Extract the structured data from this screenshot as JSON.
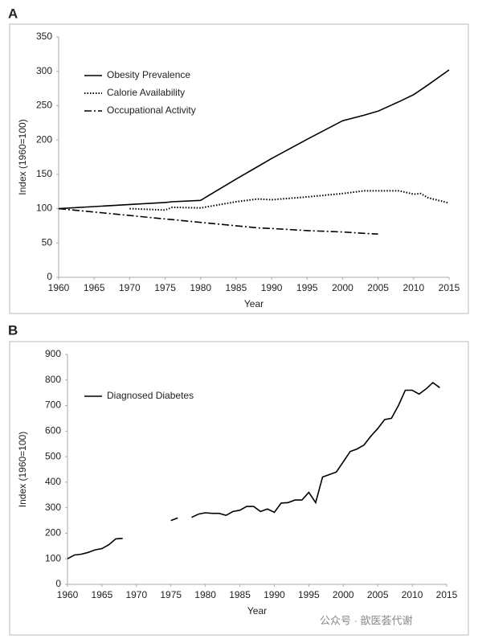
{
  "chart_data": [
    {
      "type": "line",
      "panel": "A",
      "x_label": "Year",
      "y_label": "Index (1960=100)",
      "legend": "upper left",
      "x": [
        1960,
        1965,
        1970,
        1975,
        1976,
        1980,
        1985,
        1988,
        1990,
        1995,
        2000,
        2003,
        2005,
        2008,
        2010,
        2011,
        2012,
        2015
      ],
      "series": [
        {
          "name": "Obesity Prevalence",
          "color": "#000000",
          "style": "solid",
          "values": [
            100,
            103,
            106,
            109,
            110,
            112,
            143,
            161,
            173,
            201,
            228,
            236,
            242,
            256,
            266,
            273,
            280,
            302
          ]
        },
        {
          "name": "Calorie Availability",
          "color": "#000000",
          "style": "dotted",
          "values": [
            null,
            null,
            100,
            98,
            102,
            101,
            110,
            114,
            113,
            117,
            122,
            126,
            126,
            126,
            121,
            122,
            116,
            108
          ]
        },
        {
          "name": "Occupational Activity",
          "color": "#000000",
          "style": "dashdot",
          "values": [
            100,
            95,
            90,
            85,
            84,
            80,
            75,
            72,
            71,
            68,
            66,
            64,
            63,
            null,
            null,
            null,
            null,
            null
          ]
        }
      ],
      "xlim": [
        1960,
        2015
      ],
      "xticks": [
        1960,
        1965,
        1970,
        1975,
        1980,
        1985,
        1990,
        1995,
        2000,
        2005,
        2010,
        2015
      ],
      "ylim": [
        0,
        350
      ],
      "yticks": [
        0,
        50,
        100,
        150,
        200,
        250,
        300,
        350
      ],
      "grid": false
    },
    {
      "type": "line",
      "panel": "B",
      "x_label": "Year",
      "y_label": "Index (1960=100)",
      "legend": "upper left",
      "x": [
        1960,
        1961,
        1962,
        1963,
        1964,
        1965,
        1966,
        1967,
        1968,
        1969,
        1975,
        1976,
        1977,
        1978,
        1979,
        1980,
        1981,
        1982,
        1983,
        1984,
        1985,
        1986,
        1987,
        1988,
        1989,
        1990,
        1991,
        1992,
        1993,
        1994,
        1995,
        1996,
        1997,
        1998,
        1999,
        2000,
        2001,
        2002,
        2003,
        2004,
        2005,
        2006,
        2007,
        2008,
        2009,
        2010,
        2011,
        2012,
        2013,
        2014
      ],
      "series": [
        {
          "name": "Diagnosed Diabetes",
          "color": "#000000",
          "style": "solid",
          "values": [
            100,
            115,
            118,
            125,
            135,
            140,
            155,
            178,
            180,
            null,
            250,
            260,
            null,
            262,
            275,
            280,
            278,
            278,
            270,
            285,
            290,
            305,
            305,
            285,
            295,
            282,
            318,
            320,
            330,
            330,
            360,
            320,
            420,
            430,
            440,
            480,
            520,
            530,
            545,
            580,
            610,
            645,
            650,
            700,
            760,
            760,
            745,
            765,
            790,
            770
          ]
        }
      ],
      "xlim": [
        1960,
        2015
      ],
      "xticks": [
        1960,
        1965,
        1970,
        1975,
        1980,
        1985,
        1990,
        1995,
        2000,
        2005,
        2010,
        2015
      ],
      "ylim": [
        0,
        900
      ],
      "yticks": [
        0,
        100,
        200,
        300,
        400,
        500,
        600,
        700,
        800,
        900
      ],
      "grid": false
    }
  ],
  "watermark": "公众号 · 歆医荟代谢"
}
